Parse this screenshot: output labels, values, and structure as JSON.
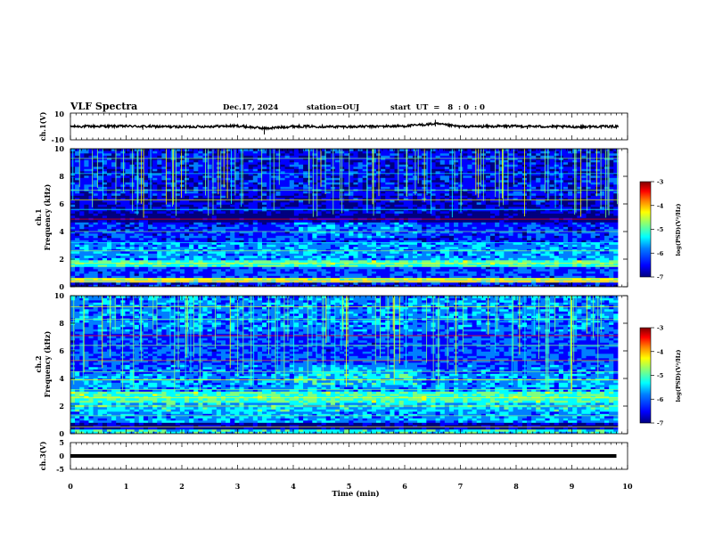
{
  "header": {
    "title": "VLF Spectra",
    "date": "Dec.17, 2024",
    "station": "station=OUJ",
    "start": "start  UT  =   8  : 0  : 0"
  },
  "colors": {
    "colormap": [
      "#00007f",
      "#0000ff",
      "#007fff",
      "#00ffff",
      "#7fff7f",
      "#ffff00",
      "#ff7f00",
      "#ff0000",
      "#7f0000"
    ],
    "trace": "#000000"
  },
  "chart_data": [
    {
      "type": "line",
      "name": "ch1-waveform",
      "ylabel": "ch.1(V)",
      "ylim": [
        -10,
        10
      ],
      "yticks": [
        "10",
        "-10"
      ],
      "x": [
        0,
        1,
        2,
        3,
        3.5,
        4,
        5,
        6,
        6.55,
        7,
        8,
        9,
        9.8
      ],
      "y": [
        0,
        0.2,
        -0.3,
        0.4,
        -1.5,
        0.1,
        -0.2,
        0.3,
        2.0,
        -0.1,
        0.2,
        -0.3,
        0.1
      ],
      "xlim": [
        0,
        10
      ]
    },
    {
      "type": "heatmap",
      "name": "ch1-spectrogram",
      "ylabel": "ch.1\nFrequency (kHz)",
      "ylim": [
        0,
        10
      ],
      "yticks": [
        "0",
        "2",
        "4",
        "6",
        "8",
        "10"
      ],
      "xlim": [
        0,
        10
      ],
      "colorbar": {
        "label": "log(PSD)(V²/Hz)",
        "range": [
          -7,
          -3
        ],
        "ticks": [
          "-3",
          "-4",
          "-5",
          "-6",
          "-7"
        ]
      }
    },
    {
      "type": "heatmap",
      "name": "ch2-spectrogram",
      "ylabel": "ch.2\nFrequency (kHz)",
      "ylim": [
        0,
        10
      ],
      "yticks": [
        "0",
        "2",
        "4",
        "6",
        "8",
        "10"
      ],
      "xlim": [
        0,
        10
      ],
      "colorbar": {
        "label": "log(PSD)(V²/Hz)",
        "range": [
          -7,
          -3
        ],
        "ticks": [
          "-3",
          "-4",
          "-5",
          "-6",
          "-7"
        ]
      }
    },
    {
      "type": "line",
      "name": "ch3-waveform",
      "ylabel": "ch.3(V)",
      "ylim": [
        -5,
        5
      ],
      "yticks": [
        "5",
        "0",
        "-5"
      ],
      "x": [
        0,
        9.8
      ],
      "y": [
        0,
        0
      ],
      "xlim": [
        0,
        10
      ]
    }
  ],
  "xaxis": {
    "label": "Time (min)",
    "ticks": [
      "0",
      "1",
      "2",
      "3",
      "4",
      "5",
      "6",
      "7",
      "8",
      "9",
      "10"
    ]
  },
  "ylabels": {
    "ch1_wave": "ch.1(V)",
    "ch1_spec_a": "ch.1",
    "ch1_spec_b": "Frequency (kHz)",
    "ch2_spec_a": "ch.2",
    "ch2_spec_b": "Frequency (kHz)",
    "ch3_wave": "ch.3(V)"
  },
  "colorbar_label": "log(PSD)(V²/Hz)",
  "colorbar_ticks": [
    "-3",
    "-4",
    "-5",
    "-6",
    "-7"
  ]
}
